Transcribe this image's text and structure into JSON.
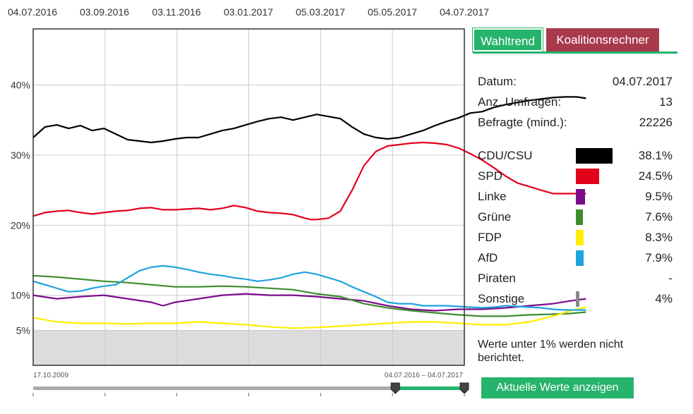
{
  "chart_data": {
    "type": "line",
    "x_ticks": [
      "04.07.2016",
      "03.09.2016",
      "03.11.2016",
      "03.01.2017",
      "05.03.2017",
      "05.05.2017",
      "04.07.2017"
    ],
    "y_ticks": [
      "40%",
      "30%",
      "20%",
      "10%",
      "5%"
    ],
    "y_tick_values": [
      40,
      30,
      20,
      10,
      5
    ],
    "ylim": [
      0,
      48
    ],
    "x_range": [
      "04.07.2016",
      "04.07.2017"
    ],
    "shaded_below": 5,
    "grid": true,
    "series": [
      {
        "name": "CDU/CSU",
        "color": "#000000",
        "values": [
          [
            0,
            32.5
          ],
          [
            10,
            34.0
          ],
          [
            20,
            34.3
          ],
          [
            30,
            33.8
          ],
          [
            40,
            34.2
          ],
          [
            50,
            33.5
          ],
          [
            60,
            33.8
          ],
          [
            70,
            33.0
          ],
          [
            80,
            32.2
          ],
          [
            90,
            32.0
          ],
          [
            100,
            31.8
          ],
          [
            110,
            32.0
          ],
          [
            120,
            32.3
          ],
          [
            130,
            32.5
          ],
          [
            140,
            32.5
          ],
          [
            150,
            33.0
          ],
          [
            160,
            33.5
          ],
          [
            170,
            33.8
          ],
          [
            180,
            34.3
          ],
          [
            190,
            34.8
          ],
          [
            200,
            35.2
          ],
          [
            210,
            35.4
          ],
          [
            220,
            35.0
          ],
          [
            230,
            35.4
          ],
          [
            240,
            35.8
          ],
          [
            250,
            35.5
          ],
          [
            260,
            35.2
          ],
          [
            270,
            34.0
          ],
          [
            280,
            33.0
          ],
          [
            290,
            32.5
          ],
          [
            300,
            32.3
          ],
          [
            310,
            32.5
          ],
          [
            320,
            33.0
          ],
          [
            330,
            33.5
          ],
          [
            340,
            34.2
          ],
          [
            350,
            34.8
          ],
          [
            360,
            35.3
          ],
          [
            370,
            36.0
          ],
          [
            380,
            36.2
          ],
          [
            390,
            36.8
          ],
          [
            400,
            37.2
          ],
          [
            410,
            37.5
          ],
          [
            420,
            37.8
          ],
          [
            430,
            38.0
          ],
          [
            440,
            38.2
          ],
          [
            450,
            38.3
          ],
          [
            460,
            38.3
          ],
          [
            468,
            38.1
          ]
        ]
      },
      {
        "name": "SPD",
        "color": "#e3001b",
        "values": [
          [
            0,
            21.3
          ],
          [
            10,
            21.8
          ],
          [
            20,
            22.0
          ],
          [
            30,
            22.1
          ],
          [
            40,
            21.8
          ],
          [
            50,
            21.6
          ],
          [
            60,
            21.8
          ],
          [
            70,
            22.0
          ],
          [
            80,
            22.1
          ],
          [
            90,
            22.4
          ],
          [
            100,
            22.5
          ],
          [
            110,
            22.2
          ],
          [
            120,
            22.2
          ],
          [
            130,
            22.3
          ],
          [
            140,
            22.4
          ],
          [
            150,
            22.2
          ],
          [
            160,
            22.4
          ],
          [
            170,
            22.8
          ],
          [
            180,
            22.5
          ],
          [
            190,
            22.0
          ],
          [
            200,
            21.8
          ],
          [
            210,
            21.7
          ],
          [
            220,
            21.5
          ],
          [
            230,
            21.0
          ],
          [
            235,
            20.8
          ],
          [
            240,
            20.8
          ],
          [
            250,
            21.0
          ],
          [
            260,
            22.0
          ],
          [
            270,
            25.0
          ],
          [
            280,
            28.5
          ],
          [
            290,
            30.5
          ],
          [
            300,
            31.3
          ],
          [
            310,
            31.5
          ],
          [
            320,
            31.7
          ],
          [
            330,
            31.8
          ],
          [
            340,
            31.7
          ],
          [
            350,
            31.5
          ],
          [
            360,
            31.0
          ],
          [
            370,
            30.2
          ],
          [
            380,
            29.3
          ],
          [
            390,
            28.2
          ],
          [
            400,
            27.0
          ],
          [
            410,
            26.0
          ],
          [
            420,
            25.5
          ],
          [
            430,
            25.0
          ],
          [
            440,
            24.5
          ],
          [
            450,
            24.5
          ],
          [
            460,
            24.5
          ],
          [
            468,
            24.5
          ]
        ]
      },
      {
        "name": "Linke",
        "color": "#7b0d8b",
        "values": [
          [
            0,
            10.0
          ],
          [
            20,
            9.5
          ],
          [
            40,
            9.8
          ],
          [
            60,
            10.0
          ],
          [
            80,
            9.5
          ],
          [
            100,
            9.0
          ],
          [
            110,
            8.5
          ],
          [
            120,
            9.0
          ],
          [
            140,
            9.5
          ],
          [
            160,
            10.0
          ],
          [
            180,
            10.2
          ],
          [
            200,
            10.0
          ],
          [
            220,
            10.0
          ],
          [
            240,
            9.8
          ],
          [
            260,
            9.5
          ],
          [
            280,
            9.2
          ],
          [
            300,
            8.5
          ],
          [
            320,
            8.0
          ],
          [
            340,
            7.8
          ],
          [
            360,
            8.0
          ],
          [
            380,
            8.0
          ],
          [
            400,
            8.2
          ],
          [
            420,
            8.5
          ],
          [
            440,
            8.8
          ],
          [
            455,
            9.2
          ],
          [
            468,
            9.5
          ]
        ]
      },
      {
        "name": "Grüne",
        "color": "#3d8c2e",
        "values": [
          [
            0,
            12.8
          ],
          [
            20,
            12.6
          ],
          [
            40,
            12.3
          ],
          [
            60,
            12.0
          ],
          [
            80,
            11.8
          ],
          [
            100,
            11.5
          ],
          [
            120,
            11.2
          ],
          [
            140,
            11.2
          ],
          [
            160,
            11.3
          ],
          [
            180,
            11.2
          ],
          [
            200,
            11.0
          ],
          [
            220,
            10.8
          ],
          [
            240,
            10.2
          ],
          [
            260,
            9.8
          ],
          [
            280,
            8.8
          ],
          [
            300,
            8.2
          ],
          [
            320,
            7.8
          ],
          [
            340,
            7.5
          ],
          [
            360,
            7.2
          ],
          [
            380,
            7.0
          ],
          [
            400,
            7.0
          ],
          [
            420,
            7.2
          ],
          [
            440,
            7.3
          ],
          [
            455,
            7.4
          ],
          [
            468,
            7.6
          ]
        ]
      },
      {
        "name": "FDP",
        "color": "#ffed00",
        "values": [
          [
            0,
            6.8
          ],
          [
            20,
            6.2
          ],
          [
            40,
            6.0
          ],
          [
            60,
            6.0
          ],
          [
            80,
            5.9
          ],
          [
            100,
            6.0
          ],
          [
            120,
            6.0
          ],
          [
            140,
            6.2
          ],
          [
            160,
            6.0
          ],
          [
            180,
            5.8
          ],
          [
            200,
            5.5
          ],
          [
            220,
            5.3
          ],
          [
            240,
            5.4
          ],
          [
            260,
            5.6
          ],
          [
            280,
            5.8
          ],
          [
            300,
            6.0
          ],
          [
            320,
            6.2
          ],
          [
            340,
            6.2
          ],
          [
            360,
            6.0
          ],
          [
            380,
            5.8
          ],
          [
            400,
            5.8
          ],
          [
            420,
            6.2
          ],
          [
            440,
            7.0
          ],
          [
            455,
            7.8
          ],
          [
            468,
            8.3
          ]
        ]
      },
      {
        "name": "AfD",
        "color": "#1fa2de",
        "values": [
          [
            0,
            12.0
          ],
          [
            10,
            11.5
          ],
          [
            20,
            11.0
          ],
          [
            30,
            10.5
          ],
          [
            40,
            10.6
          ],
          [
            50,
            11.0
          ],
          [
            60,
            11.3
          ],
          [
            70,
            11.5
          ],
          [
            80,
            12.5
          ],
          [
            90,
            13.5
          ],
          [
            100,
            14.0
          ],
          [
            110,
            14.2
          ],
          [
            120,
            14.0
          ],
          [
            130,
            13.7
          ],
          [
            140,
            13.3
          ],
          [
            150,
            13.0
          ],
          [
            160,
            12.8
          ],
          [
            170,
            12.5
          ],
          [
            180,
            12.3
          ],
          [
            190,
            12.0
          ],
          [
            200,
            12.2
          ],
          [
            210,
            12.5
          ],
          [
            220,
            13.0
          ],
          [
            230,
            13.3
          ],
          [
            240,
            13.0
          ],
          [
            250,
            12.5
          ],
          [
            260,
            12.0
          ],
          [
            270,
            11.2
          ],
          [
            280,
            10.5
          ],
          [
            290,
            9.8
          ],
          [
            300,
            9.0
          ],
          [
            310,
            8.8
          ],
          [
            320,
            8.8
          ],
          [
            330,
            8.5
          ],
          [
            340,
            8.5
          ],
          [
            350,
            8.5
          ],
          [
            360,
            8.4
          ],
          [
            370,
            8.3
          ],
          [
            380,
            8.2
          ],
          [
            390,
            8.3
          ],
          [
            400,
            8.5
          ],
          [
            410,
            8.4
          ],
          [
            420,
            8.3
          ],
          [
            430,
            8.2
          ],
          [
            440,
            8.0
          ],
          [
            450,
            7.9
          ],
          [
            460,
            7.9
          ],
          [
            468,
            7.9
          ]
        ]
      }
    ]
  },
  "tabs": {
    "trend_label": "Wahltrend",
    "coalition_label": "Koalitionsrechner"
  },
  "info": {
    "date_label": "Datum:",
    "date_value": "04.07.2017",
    "polls_label": "Anz. Umfragen:",
    "polls_value": "13",
    "respondents_label": "Befragte (mind.):",
    "respondents_value": "22226"
  },
  "parties": [
    {
      "name": "CDU/CSU",
      "value": "38.1%",
      "pct": 38.1,
      "color": "#000000"
    },
    {
      "name": "SPD",
      "value": "24.5%",
      "pct": 24.5,
      "color": "#e3001b"
    },
    {
      "name": "Linke",
      "value": "9.5%",
      "pct": 9.5,
      "color": "#7b0d8b"
    },
    {
      "name": "Grüne",
      "value": "7.6%",
      "pct": 7.6,
      "color": "#3d8c2e"
    },
    {
      "name": "FDP",
      "value": "8.3%",
      "pct": 8.3,
      "color": "#ffed00"
    },
    {
      "name": "AfD",
      "value": "7.9%",
      "pct": 7.9,
      "color": "#1fa2de"
    },
    {
      "name": "Piraten",
      "value": "-",
      "pct": 0,
      "color": "#ff8800"
    },
    {
      "name": "Sonstige",
      "value": "4%",
      "pct": 4,
      "color": "#888888"
    }
  ],
  "note": "Werte unter 1% werden nicht berichtet.",
  "range_slider": {
    "start_label": "17.10.2009",
    "range_label": "04.07.2016 – 04.07.2017",
    "selection_start": 0.84,
    "selection_end": 1.0
  },
  "button_current": "Aktuelle Werte anzeigen",
  "colors": {
    "accent": "#26b36b",
    "coalition": "#a83a4c"
  }
}
